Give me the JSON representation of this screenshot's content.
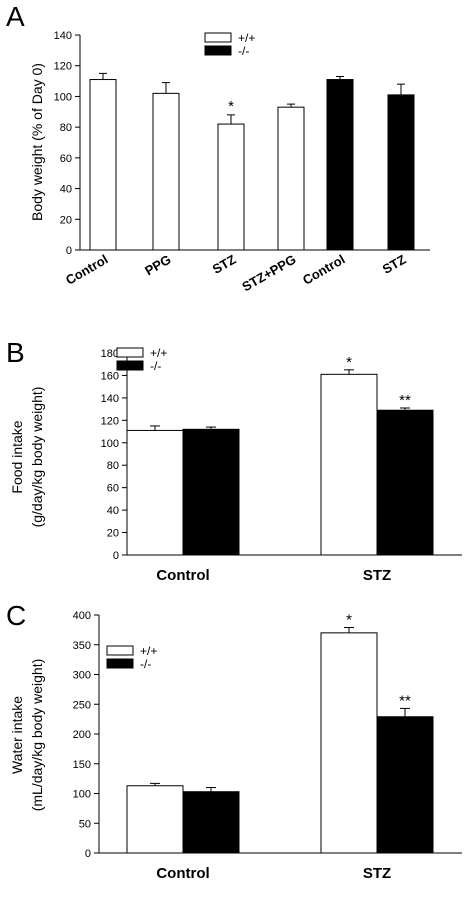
{
  "chart_data": [
    {
      "panel": "A",
      "type": "bar",
      "ylabel": "Body weight (% of Day 0)",
      "xlabel": "",
      "ylim": [
        0,
        140
      ],
      "yticks": [
        0,
        20,
        40,
        60,
        80,
        100,
        120,
        140
      ],
      "categories": [
        "Control",
        "PPG",
        "STZ",
        "STZ+PPG",
        "Control",
        "STZ"
      ],
      "values": [
        111,
        102,
        82,
        93,
        111,
        101
      ],
      "errors": [
        4,
        7,
        6,
        2,
        2,
        7
      ],
      "groups": [
        "+/+",
        "+/+",
        "+/+",
        "+/+",
        "-/-",
        "-/-"
      ],
      "annotations": [
        "",
        "",
        "*",
        "",
        "",
        ""
      ],
      "legend": {
        "position": "top-center",
        "entries": [
          {
            "label": "+/+",
            "color": "#ffffff"
          },
          {
            "label": "-/-",
            "color": "#000000"
          }
        ]
      },
      "grid": false
    },
    {
      "panel": "B",
      "type": "bar",
      "ylabel_line1": "Food intake",
      "ylabel_line2": "(g/day/kg body weight)",
      "xlabel": "",
      "ylim": [
        0,
        180
      ],
      "yticks": [
        0,
        20,
        40,
        60,
        80,
        100,
        120,
        140,
        160,
        180
      ],
      "categories": [
        "Control",
        "STZ"
      ],
      "series": [
        {
          "name": "+/+",
          "color": "#ffffff",
          "values": [
            111,
            161
          ],
          "errors": [
            4,
            4
          ],
          "annotations": [
            "",
            "*"
          ]
        },
        {
          "name": "-/-",
          "color": "#000000",
          "values": [
            112,
            129
          ],
          "errors": [
            2,
            2
          ],
          "annotations": [
            "",
            "**"
          ]
        }
      ],
      "legend": {
        "position": "top-left"
      },
      "grid": false
    },
    {
      "panel": "C",
      "type": "bar",
      "ylabel_line1": "Water intake",
      "ylabel_line2": "(mL/day/kg body weight)",
      "xlabel": "",
      "ylim": [
        0,
        400
      ],
      "yticks": [
        0,
        50,
        100,
        150,
        200,
        250,
        300,
        350,
        400
      ],
      "categories": [
        "Control",
        "STZ"
      ],
      "series": [
        {
          "name": "+/+",
          "color": "#ffffff",
          "values": [
            113,
            370
          ],
          "errors": [
            4,
            9
          ],
          "annotations": [
            "",
            "*"
          ]
        },
        {
          "name": "-/-",
          "color": "#000000",
          "values": [
            103,
            229
          ],
          "errors": [
            7,
            14
          ],
          "annotations": [
            "",
            "**"
          ]
        }
      ],
      "legend": {
        "position": "top-left"
      },
      "grid": false
    }
  ]
}
